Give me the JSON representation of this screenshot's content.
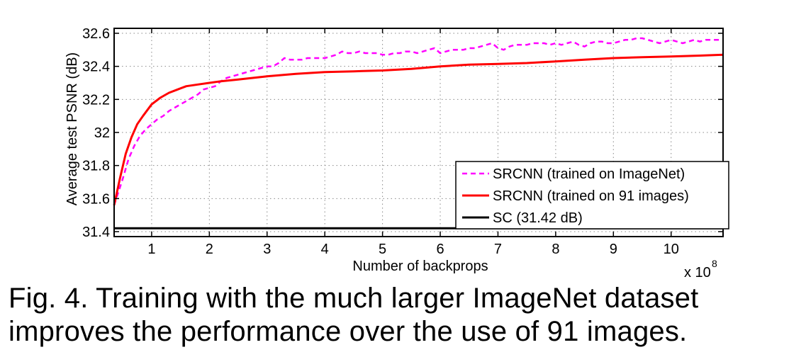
{
  "chart_data": {
    "type": "line",
    "title": "",
    "xlabel": "Number of backprops",
    "ylabel": "Average test PSNR (dB)",
    "x_multiplier_label": "x 10",
    "x_multiplier_exponent": "8",
    "xlim": [
      0.35,
      10.9
    ],
    "ylim": [
      31.37,
      32.63
    ],
    "x_ticks": [
      1,
      2,
      3,
      4,
      5,
      6,
      7,
      8,
      9,
      10
    ],
    "y_ticks": [
      31.4,
      31.6,
      31.8,
      32,
      32.2,
      32.4,
      32.6
    ],
    "y_tick_labels": [
      "31.4",
      "31.6",
      "31.8",
      "32",
      "32.2",
      "32.4",
      "32.6"
    ],
    "grid": true,
    "legend_position": "bottom-right",
    "series": [
      {
        "name": "SRCNN (trained on ImageNet)",
        "color": "#ff00ff",
        "style": "dashed",
        "x": [
          0.35,
          0.5,
          0.6,
          0.7,
          0.8,
          0.9,
          1.0,
          1.1,
          1.2,
          1.3,
          1.4,
          1.5,
          1.6,
          1.7,
          1.8,
          1.9,
          2.0,
          2.1,
          2.2,
          2.3,
          2.4,
          2.5,
          2.6,
          2.7,
          2.8,
          2.9,
          3.0,
          3.1,
          3.2,
          3.3,
          3.4,
          3.5,
          3.6,
          3.7,
          3.8,
          3.9,
          4.0,
          4.1,
          4.2,
          4.3,
          4.4,
          4.5,
          4.6,
          4.7,
          4.8,
          4.9,
          5.0,
          5.1,
          5.2,
          5.3,
          5.4,
          5.5,
          5.6,
          5.7,
          5.8,
          5.9,
          6.0,
          6.1,
          6.2,
          6.3,
          6.4,
          6.5,
          6.6,
          6.7,
          6.8,
          6.9,
          7.0,
          7.1,
          7.2,
          7.3,
          7.4,
          7.5,
          7.6,
          7.7,
          7.8,
          7.9,
          8.0,
          8.1,
          8.2,
          8.3,
          8.4,
          8.5,
          8.6,
          8.7,
          8.8,
          8.9,
          9.0,
          9.1,
          9.2,
          9.3,
          9.4,
          9.5,
          9.6,
          9.7,
          9.8,
          9.9,
          10.0,
          10.1,
          10.2,
          10.3,
          10.4,
          10.5,
          10.6,
          10.7,
          10.8,
          10.9
        ],
        "y": [
          31.56,
          31.72,
          31.84,
          31.92,
          31.98,
          32.02,
          32.05,
          32.08,
          32.1,
          32.13,
          32.15,
          32.17,
          32.19,
          32.21,
          32.23,
          32.26,
          32.27,
          32.28,
          32.31,
          32.33,
          32.34,
          32.35,
          32.36,
          32.37,
          32.38,
          32.39,
          32.4,
          32.4,
          32.42,
          32.45,
          32.44,
          32.44,
          32.44,
          32.45,
          32.45,
          32.45,
          32.45,
          32.46,
          32.47,
          32.49,
          32.48,
          32.48,
          32.49,
          32.48,
          32.48,
          32.48,
          32.47,
          32.47,
          32.48,
          32.48,
          32.49,
          32.49,
          32.48,
          32.49,
          32.5,
          32.51,
          32.48,
          32.49,
          32.5,
          32.5,
          32.5,
          32.51,
          32.51,
          32.52,
          32.53,
          32.54,
          32.51,
          32.5,
          32.52,
          32.53,
          32.53,
          32.53,
          32.54,
          32.54,
          32.54,
          32.53,
          32.54,
          32.53,
          32.54,
          32.55,
          32.53,
          32.52,
          32.54,
          32.55,
          32.55,
          32.54,
          32.54,
          32.55,
          32.56,
          32.56,
          32.57,
          32.57,
          32.56,
          32.55,
          32.54,
          32.55,
          32.56,
          32.55,
          32.54,
          32.55,
          32.56,
          32.55,
          32.56,
          32.56,
          32.56,
          32.56
        ]
      },
      {
        "name": "SRCNN (trained on 91 images)",
        "color": "#ff0000",
        "style": "solid",
        "x": [
          0.35,
          0.45,
          0.55,
          0.65,
          0.75,
          0.85,
          1.0,
          1.15,
          1.3,
          1.45,
          1.6,
          1.8,
          2.0,
          2.2,
          2.5,
          3.0,
          3.5,
          4.0,
          4.5,
          5.0,
          5.5,
          6.0,
          6.5,
          7.0,
          7.5,
          8.0,
          8.5,
          9.0,
          9.5,
          10.0,
          10.5,
          10.9
        ],
        "y": [
          31.56,
          31.72,
          31.87,
          31.97,
          32.05,
          32.1,
          32.17,
          32.21,
          32.24,
          32.26,
          32.28,
          32.29,
          32.3,
          32.31,
          32.32,
          32.34,
          32.355,
          32.365,
          32.37,
          32.375,
          32.385,
          32.4,
          32.41,
          32.415,
          32.42,
          32.43,
          32.44,
          32.45,
          32.455,
          32.46,
          32.465,
          32.47
        ]
      },
      {
        "name": "SC (31.42 dB)",
        "color": "#000000",
        "style": "solid",
        "x": [
          0.35,
          10.9
        ],
        "y": [
          31.42,
          31.42
        ]
      }
    ]
  },
  "caption": {
    "line1": "Fig. 4.  Training with the much larger ImageNet dataset",
    "line2": "improves the performance over the use of 91 images."
  }
}
